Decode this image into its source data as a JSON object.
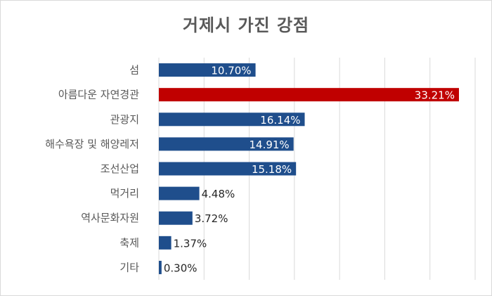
{
  "chart_data": {
    "type": "bar",
    "orientation": "horizontal",
    "title": "거제시 가진 강점",
    "categories": [
      "섬",
      "아름다운 자연경관",
      "관광지",
      "해수욕장 및 해양레저",
      "조선산업",
      "먹거리",
      "역사문화자원",
      "축제",
      "기타"
    ],
    "values": [
      10.7,
      33.21,
      16.14,
      14.91,
      15.18,
      4.48,
      3.72,
      1.37,
      0.3
    ],
    "value_labels": [
      "10.70%",
      "33.21%",
      "16.14%",
      "14.91%",
      "15.18%",
      "4.48%",
      "3.72%",
      "1.37%",
      "0.30%"
    ],
    "xlim": [
      0,
      35
    ],
    "grid": true,
    "legend": "none",
    "colors": {
      "default": "#1f4e8c",
      "highlight": "#c00000",
      "gridline": "#d9d9d9",
      "label_inside": "#ffffff",
      "label_outside": "#262626"
    },
    "highlight_index": 1
  }
}
